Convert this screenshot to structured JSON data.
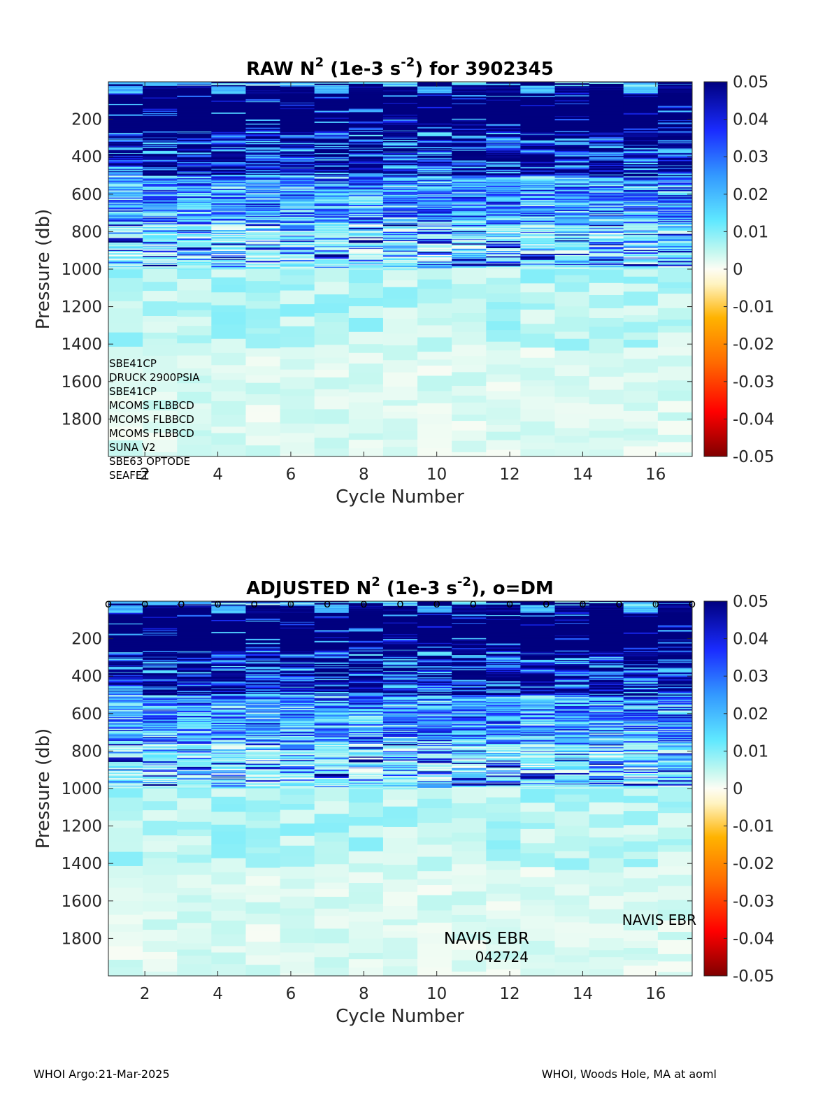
{
  "chart_data": [
    {
      "type": "heatmap",
      "title": "RAW N",
      "title_sup": "2",
      "title_mid": " (1e-3 s",
      "title_sup2": "-2",
      "title_end": ") for 3902345",
      "xlabel": "Cycle Number",
      "ylabel": "Pressure (db)",
      "x_ticks": [
        "2",
        "4",
        "6",
        "8",
        "10",
        "12",
        "14",
        "16"
      ],
      "y_ticks": [
        "200",
        "400",
        "600",
        "800",
        "1000",
        "1200",
        "1400",
        "1600",
        "1800"
      ],
      "colorbar_ticks": [
        "0.05",
        "0.04",
        "0.03",
        "0.02",
        "0.01",
        "0",
        "-0.01",
        "-0.02",
        "-0.03",
        "-0.04",
        "-0.05"
      ],
      "cycles": [
        1,
        2,
        3,
        4,
        5,
        6,
        7,
        8,
        9,
        10,
        11,
        12,
        13,
        14,
        15,
        16,
        17
      ],
      "xlim": [
        1,
        17
      ],
      "ylim": [
        0,
        2000
      ],
      "clim": [
        -0.05,
        0.05
      ],
      "colormap": "jet",
      "sensors": [
        "SBE41CP",
        "DRUCK 2900PSIA",
        "SBE41CP",
        "MCOMS FLBBCD",
        "MCOMS FLBBCD",
        "MCOMS FLBBCD",
        "SUNA V2",
        "SBE63 OPTODE",
        "SEAFET"
      ]
    },
    {
      "type": "heatmap",
      "title": "ADJUSTED N",
      "title_sup": "2",
      "title_mid": " (1e-3 s",
      "title_sup2": "-2",
      "title_end": "), o=DM",
      "xlabel": "Cycle Number",
      "ylabel": "Pressure (db)",
      "x_ticks": [
        "2",
        "4",
        "6",
        "8",
        "10",
        "12",
        "14",
        "16"
      ],
      "y_ticks": [
        "200",
        "400",
        "600",
        "800",
        "1000",
        "1200",
        "1400",
        "1600",
        "1800"
      ],
      "colorbar_ticks": [
        "0.05",
        "0.04",
        "0.03",
        "0.02",
        "0.01",
        "0",
        "-0.01",
        "-0.02",
        "-0.03",
        "-0.04",
        "-0.05"
      ],
      "cycles": [
        1,
        2,
        3,
        4,
        5,
        6,
        7,
        8,
        9,
        10,
        11,
        12,
        13,
        14,
        15,
        16,
        17
      ],
      "xlim": [
        1,
        17
      ],
      "ylim": [
        0,
        2000
      ],
      "clim": [
        -0.05,
        0.05
      ],
      "colormap": "jet",
      "dm_marker": "o",
      "annotation_title": "NAVIS EBR",
      "annotation_code": "042724",
      "annotation_right": "NAVIS EBR"
    }
  ],
  "footer": {
    "left": "WHOI Argo:21-Mar-2025",
    "right": "WHOI, Woods Hole, MA at aoml"
  }
}
